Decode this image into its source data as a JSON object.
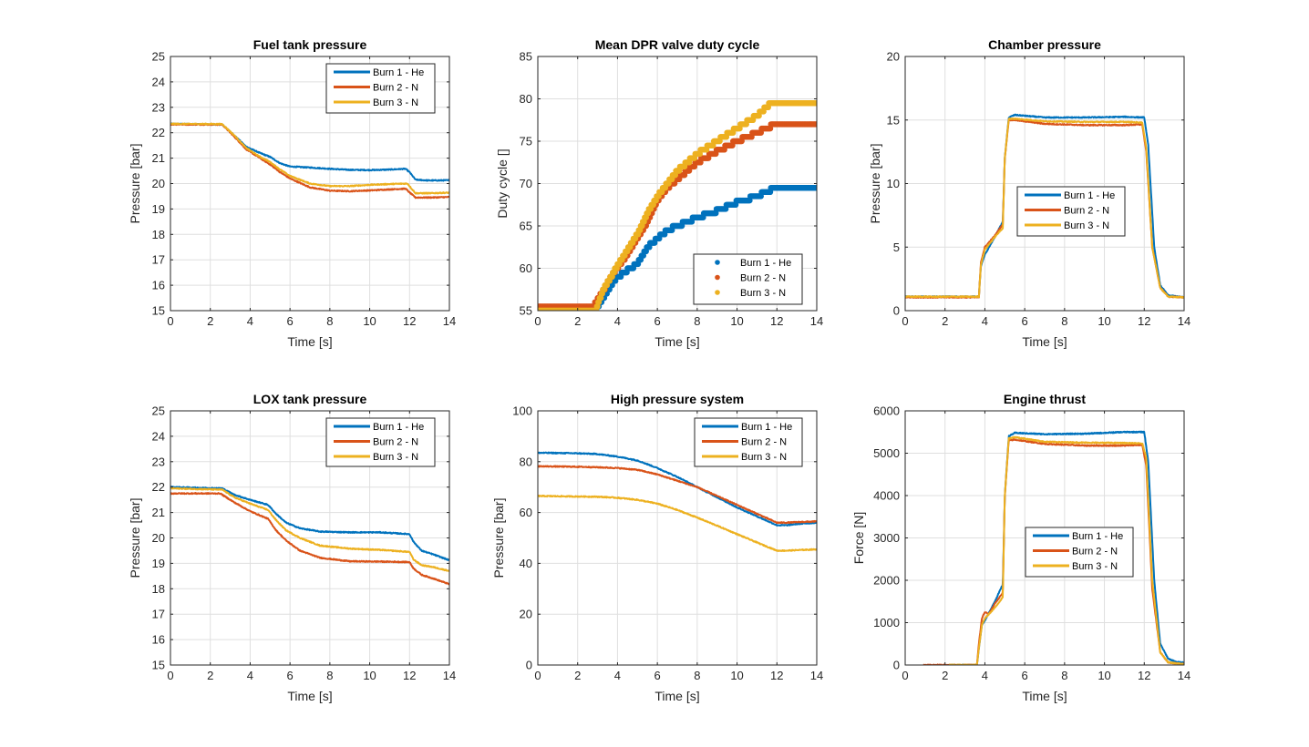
{
  "figure": {
    "background": "#ffffff"
  },
  "colors": {
    "burn1": "#0072BD",
    "burn2": "#D95319",
    "burn3": "#EDB120",
    "grid": "#dfdfdf",
    "axis": "#262626"
  },
  "chart_data": [
    {
      "id": "fuel",
      "type": "line",
      "title": "Fuel tank pressure",
      "xlabel": "Time [s]",
      "ylabel": "Pressure [bar]",
      "xlim": [
        0,
        14
      ],
      "ylim": [
        15,
        25
      ],
      "xticks": [
        0,
        2,
        4,
        6,
        8,
        10,
        12,
        14
      ],
      "yticks": [
        15,
        16,
        17,
        18,
        19,
        20,
        21,
        22,
        23,
        24,
        25
      ],
      "grid": true,
      "legend": {
        "location": "top-right",
        "style": "line"
      },
      "series": [
        {
          "name": "Burn 1 - He",
          "color": "#0072BD",
          "x": [
            0,
            2.6,
            3.2,
            3.8,
            4.5,
            5.0,
            5.5,
            6.0,
            7.0,
            8.0,
            9.0,
            10.0,
            11.0,
            11.8,
            12.0,
            12.3,
            13.0,
            14.0
          ],
          "y": [
            22.35,
            22.32,
            21.9,
            21.45,
            21.2,
            21.05,
            20.8,
            20.67,
            20.63,
            20.58,
            20.54,
            20.53,
            20.55,
            20.58,
            20.45,
            20.15,
            20.12,
            20.13
          ]
        },
        {
          "name": "Burn 2 - N",
          "color": "#D95319",
          "x": [
            0,
            2.6,
            3.2,
            3.8,
            4.5,
            5.0,
            5.5,
            6.0,
            7.0,
            8.0,
            9.0,
            10.0,
            11.0,
            11.8,
            12.0,
            12.3,
            13.0,
            14.0
          ],
          "y": [
            22.33,
            22.32,
            21.85,
            21.35,
            21.0,
            20.75,
            20.45,
            20.2,
            19.85,
            19.72,
            19.7,
            19.73,
            19.77,
            19.8,
            19.65,
            19.45,
            19.45,
            19.47
          ]
        },
        {
          "name": "Burn 3 - N",
          "color": "#EDB120",
          "x": [
            0,
            2.6,
            3.2,
            3.8,
            4.5,
            5.0,
            5.5,
            6.0,
            7.0,
            8.0,
            9.0,
            10.0,
            11.0,
            11.9,
            12.1,
            12.3,
            13.0,
            14.0
          ],
          "y": [
            22.35,
            22.34,
            21.9,
            21.4,
            21.05,
            20.85,
            20.55,
            20.3,
            20.0,
            19.9,
            19.9,
            19.95,
            19.98,
            20.0,
            19.8,
            19.62,
            19.62,
            19.64
          ]
        }
      ]
    },
    {
      "id": "duty",
      "type": "scatter",
      "title": "Mean DPR valve duty cycle",
      "xlabel": "Time [s]",
      "ylabel": "Duty cycle []",
      "xlim": [
        0,
        14
      ],
      "ylim": [
        55,
        85
      ],
      "xticks": [
        0,
        2,
        4,
        6,
        8,
        10,
        12,
        14
      ],
      "yticks": [
        55,
        60,
        65,
        70,
        75,
        80,
        85
      ],
      "grid": true,
      "legend": {
        "location": "bottom-right",
        "style": "marker"
      },
      "series": [
        {
          "name": "Burn 1 - He",
          "color": "#0072BD",
          "x": [
            0,
            2.9,
            3.3,
            3.8,
            4.3,
            5.0,
            5.5,
            6.0,
            6.5,
            7.0,
            8.0,
            9.0,
            10.0,
            11.0,
            11.9,
            14.0
          ],
          "y": [
            55.0,
            55.0,
            56.5,
            58.5,
            59.5,
            60.5,
            62.5,
            63.5,
            64.5,
            65.0,
            66.0,
            66.8,
            67.8,
            68.5,
            69.5,
            69.5
          ]
        },
        {
          "name": "Burn 2 - N",
          "color": "#D95319",
          "x": [
            0,
            2.8,
            3.2,
            3.8,
            4.3,
            5.0,
            5.5,
            6.0,
            6.5,
            7.0,
            8.0,
            9.0,
            10.0,
            11.0,
            11.9,
            14.0
          ],
          "y": [
            55.5,
            55.5,
            57.0,
            59.5,
            61.0,
            63.5,
            65.5,
            68.0,
            69.5,
            70.5,
            72.5,
            73.8,
            75.0,
            76.0,
            77.0,
            77.0
          ]
        },
        {
          "name": "Burn 3 - N",
          "color": "#EDB120",
          "x": [
            0,
            2.9,
            3.3,
            3.8,
            4.3,
            5.0,
            5.5,
            6.0,
            6.5,
            7.0,
            8.0,
            9.0,
            10.0,
            11.0,
            11.7,
            14.0
          ],
          "y": [
            55.0,
            55.0,
            57.5,
            59.5,
            61.5,
            64.0,
            66.5,
            68.5,
            70.0,
            71.5,
            73.5,
            75.0,
            76.5,
            78.0,
            79.5,
            79.5
          ]
        }
      ]
    },
    {
      "id": "chamber",
      "type": "line",
      "title": "Chamber pressure",
      "xlabel": "Time [s]",
      "ylabel": "Pressure [bar]",
      "xlim": [
        0,
        14
      ],
      "ylim": [
        0,
        20
      ],
      "xticks": [
        0,
        2,
        4,
        6,
        8,
        10,
        12,
        14
      ],
      "yticks": [
        0,
        5,
        10,
        15,
        20
      ],
      "grid": true,
      "legend": {
        "location": "center",
        "style": "line"
      },
      "series": [
        {
          "name": "Burn 1 - He",
          "color": "#0072BD",
          "x": [
            0,
            3.7,
            3.8,
            4.0,
            4.5,
            4.9,
            5.0,
            5.2,
            5.5,
            7.0,
            9.0,
            11.0,
            12.0,
            12.2,
            12.5,
            12.8,
            13.2,
            14.0
          ],
          "y": [
            1.1,
            1.1,
            3.5,
            4.4,
            5.8,
            7.0,
            12.0,
            15.2,
            15.4,
            15.2,
            15.2,
            15.25,
            15.2,
            13.0,
            5.0,
            2.0,
            1.2,
            1.05
          ]
        },
        {
          "name": "Burn 2 - N",
          "color": "#D95319",
          "x": [
            0,
            3.7,
            3.8,
            4.0,
            4.5,
            4.9,
            5.0,
            5.2,
            5.5,
            7.0,
            9.0,
            11.0,
            11.9,
            12.1,
            12.4,
            12.8,
            13.2,
            14.0
          ],
          "y": [
            1.05,
            1.05,
            3.8,
            5.0,
            5.9,
            6.8,
            12.0,
            15.0,
            15.0,
            14.7,
            14.6,
            14.6,
            14.65,
            12.5,
            5.0,
            1.8,
            1.1,
            1.05
          ]
        },
        {
          "name": "Burn 3 - N",
          "color": "#EDB120",
          "x": [
            0,
            3.7,
            3.8,
            4.0,
            4.5,
            4.9,
            5.0,
            5.2,
            5.5,
            7.0,
            9.0,
            11.0,
            11.9,
            12.1,
            12.4,
            12.8,
            13.2,
            14.0
          ],
          "y": [
            1.1,
            1.1,
            3.6,
            4.8,
            5.8,
            6.5,
            12.0,
            15.1,
            15.1,
            14.9,
            14.85,
            14.85,
            14.8,
            12.8,
            5.0,
            1.8,
            1.1,
            1.05
          ]
        }
      ]
    },
    {
      "id": "lox",
      "type": "line",
      "title": "LOX tank pressure",
      "xlabel": "Time [s]",
      "ylabel": "Pressure [bar]",
      "xlim": [
        0,
        14
      ],
      "ylim": [
        15,
        25
      ],
      "xticks": [
        0,
        2,
        4,
        6,
        8,
        10,
        12,
        14
      ],
      "yticks": [
        15,
        16,
        17,
        18,
        19,
        20,
        21,
        22,
        23,
        24,
        25
      ],
      "grid": true,
      "legend": {
        "location": "top-right",
        "style": "line"
      },
      "series": [
        {
          "name": "Burn 1 - He",
          "color": "#0072BD",
          "x": [
            0,
            2.6,
            3.2,
            4.0,
            4.9,
            5.3,
            5.8,
            6.5,
            7.5,
            9.0,
            10.5,
            12.0,
            12.2,
            12.6,
            13.2,
            14.0
          ],
          "y": [
            22.0,
            21.95,
            21.7,
            21.5,
            21.3,
            20.95,
            20.6,
            20.38,
            20.25,
            20.22,
            20.22,
            20.15,
            19.85,
            19.5,
            19.35,
            19.12
          ]
        },
        {
          "name": "Burn 2 - N",
          "color": "#D95319",
          "x": [
            0,
            2.5,
            3.2,
            4.0,
            4.9,
            5.3,
            5.8,
            6.5,
            7.5,
            9.0,
            10.5,
            12.0,
            12.2,
            12.6,
            13.2,
            14.0
          ],
          "y": [
            21.75,
            21.75,
            21.4,
            21.05,
            20.75,
            20.3,
            19.9,
            19.5,
            19.22,
            19.08,
            19.07,
            19.05,
            18.8,
            18.55,
            18.4,
            18.18
          ]
        },
        {
          "name": "Burn 3 - N",
          "color": "#EDB120",
          "x": [
            0,
            2.6,
            3.2,
            4.0,
            4.9,
            5.3,
            5.8,
            6.5,
            7.5,
            9.0,
            10.5,
            12.0,
            12.2,
            12.6,
            13.2,
            14.0
          ],
          "y": [
            21.95,
            21.9,
            21.6,
            21.35,
            21.1,
            20.7,
            20.3,
            20.0,
            19.7,
            19.58,
            19.53,
            19.45,
            19.15,
            18.93,
            18.85,
            18.7
          ]
        }
      ]
    },
    {
      "id": "hp",
      "type": "line",
      "title": "High pressure system",
      "xlabel": "Time [s]",
      "ylabel": "Pressure [bar]",
      "xlim": [
        0,
        14
      ],
      "ylim": [
        0,
        100
      ],
      "xticks": [
        0,
        2,
        4,
        6,
        8,
        10,
        12,
        14
      ],
      "yticks": [
        0,
        20,
        40,
        60,
        80,
        100
      ],
      "grid": true,
      "legend": {
        "location": "top-right",
        "style": "line"
      },
      "series": [
        {
          "name": "Burn 1 - He",
          "color": "#0072BD",
          "x": [
            0,
            2,
            3,
            4,
            5,
            6,
            7,
            8,
            9,
            10,
            11,
            12,
            12.5,
            13,
            14
          ],
          "y": [
            83.5,
            83.3,
            83.0,
            82.0,
            80.5,
            77.5,
            74.0,
            70.0,
            66.0,
            62.0,
            58.5,
            55.0,
            55.0,
            55.5,
            56.0
          ]
        },
        {
          "name": "Burn 2 - N",
          "color": "#D95319",
          "x": [
            0,
            2,
            3,
            4,
            5,
            6,
            7,
            8,
            9,
            10,
            11,
            12,
            12.5,
            13,
            14
          ],
          "y": [
            78.2,
            78.0,
            77.8,
            77.5,
            76.8,
            75.0,
            72.5,
            70.0,
            66.5,
            63.0,
            59.5,
            56.0,
            56.0,
            56.2,
            56.5
          ]
        },
        {
          "name": "Burn 3 - N",
          "color": "#EDB120",
          "x": [
            0,
            2,
            3,
            4,
            5,
            6,
            7,
            8,
            9,
            10,
            11,
            12,
            12.5,
            13,
            14
          ],
          "y": [
            66.5,
            66.3,
            66.2,
            65.8,
            65.0,
            63.5,
            61.0,
            58.0,
            54.8,
            51.5,
            48.2,
            45.0,
            45.0,
            45.2,
            45.5
          ]
        }
      ]
    },
    {
      "id": "thrust",
      "type": "line",
      "title": "Engine thrust",
      "xlabel": "Time [s]",
      "ylabel": "Force [N]",
      "xlim": [
        0,
        14
      ],
      "ylim": [
        0,
        6000
      ],
      "xticks": [
        0,
        2,
        4,
        6,
        8,
        10,
        12,
        14
      ],
      "yticks": [
        0,
        1000,
        2000,
        3000,
        4000,
        5000,
        6000
      ],
      "grid": true,
      "legend": {
        "location": "center",
        "style": "line"
      },
      "series": [
        {
          "name": "Burn 1 - He",
          "color": "#0072BD",
          "x": [
            2.3,
            3.6,
            3.7,
            3.85,
            4.0,
            4.5,
            4.9,
            5.0,
            5.2,
            5.5,
            7.0,
            9.0,
            11.0,
            12.0,
            12.2,
            12.5,
            12.8,
            13.2,
            13.6,
            14.0
          ],
          "y": [
            0,
            0,
            400,
            950,
            1050,
            1500,
            1900,
            4000,
            5400,
            5480,
            5450,
            5460,
            5500,
            5500,
            4800,
            2000,
            500,
            150,
            70,
            60
          ]
        },
        {
          "name": "Burn 2 - N",
          "color": "#D95319",
          "x": [
            0.9,
            3.6,
            3.7,
            3.85,
            4.0,
            4.2,
            4.5,
            4.9,
            5.0,
            5.2,
            5.5,
            7.0,
            9.0,
            11.0,
            11.9,
            12.1,
            12.4,
            12.8,
            13.2,
            14.0
          ],
          "y": [
            0,
            0,
            500,
            1100,
            1250,
            1200,
            1450,
            1700,
            4000,
            5300,
            5320,
            5220,
            5180,
            5180,
            5200,
            4700,
            1800,
            300,
            60,
            20
          ]
        },
        {
          "name": "Burn 3 - N",
          "color": "#EDB120",
          "x": [
            2.2,
            3.6,
            3.7,
            3.85,
            4.0,
            4.5,
            4.9,
            5.0,
            5.2,
            5.5,
            7.0,
            9.0,
            11.0,
            11.9,
            12.1,
            12.4,
            12.8,
            13.2,
            14.0
          ],
          "y": [
            0,
            0,
            400,
            950,
            1100,
            1350,
            1600,
            4000,
            5350,
            5380,
            5270,
            5250,
            5240,
            5230,
            4900,
            2000,
            300,
            60,
            20
          ]
        }
      ]
    }
  ]
}
